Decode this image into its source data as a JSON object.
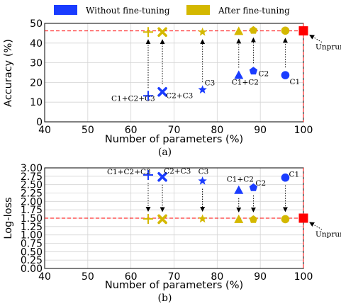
{
  "legend": [
    {
      "label": "Without fine-tuning",
      "color": "#1a3cff"
    },
    {
      "label": "After fine-tuning",
      "color": "#d4b800"
    }
  ],
  "chart_data": [
    {
      "type": "scatter",
      "caption": "(a)",
      "xlabel": "Number of parameters (%)",
      "ylabel": "Accuracy (%)",
      "xlim": [
        40,
        100
      ],
      "ylim": [
        0,
        50
      ],
      "xticks": [
        "40",
        "50",
        "60",
        "70",
        "80",
        "90",
        "100"
      ],
      "yticks": [
        "0",
        "10",
        "20",
        "30",
        "40",
        "50"
      ],
      "grid": true,
      "reference": {
        "x": 100,
        "y": 46.2,
        "label": "Unpruned",
        "color": "#ff0000"
      },
      "series": [
        {
          "name": "Without fine-tuning",
          "color": "#1a3cff",
          "points": [
            {
              "label": "C1+C2+C3",
              "x": 64,
              "y": 13.2,
              "marker": "plus"
            },
            {
              "label": "C2+C3",
              "x": 67.3,
              "y": 15.2,
              "marker": "x"
            },
            {
              "label": "C3",
              "x": 76.6,
              "y": 16.3,
              "marker": "star"
            },
            {
              "label": "C1+C2",
              "x": 85,
              "y": 23.6,
              "marker": "triangle"
            },
            {
              "label": "C2",
              "x": 88.4,
              "y": 25.8,
              "marker": "pentagon"
            },
            {
              "label": "C1",
              "x": 95.8,
              "y": 23.7,
              "marker": "circle"
            }
          ]
        },
        {
          "name": "After fine-tuning",
          "color": "#d4b800",
          "points": [
            {
              "x": 64,
              "y": 45.6,
              "marker": "plus"
            },
            {
              "x": 67.3,
              "y": 45.6,
              "marker": "x"
            },
            {
              "x": 76.6,
              "y": 45.6,
              "marker": "star"
            },
            {
              "x": 85,
              "y": 45.9,
              "marker": "triangle"
            },
            {
              "x": 88.4,
              "y": 46.5,
              "marker": "pentagon"
            },
            {
              "x": 95.8,
              "y": 46.3,
              "marker": "circle"
            }
          ]
        }
      ]
    },
    {
      "type": "scatter",
      "caption": "(b)",
      "xlabel": "Number of parameters (%)",
      "ylabel": "Log-loss",
      "xlim": [
        40,
        100
      ],
      "ylim": [
        0,
        3
      ],
      "xticks": [
        "40",
        "50",
        "60",
        "70",
        "80",
        "90",
        "100"
      ],
      "yticks": [
        "0.00",
        "0.25",
        "0.50",
        "0.75",
        "1.00",
        "1.25",
        "1.50",
        "1.75",
        "2.00",
        "2.25",
        "2.50",
        "2.75",
        "3.00"
      ],
      "grid": true,
      "reference": {
        "x": 100,
        "y": 1.5,
        "label": "Unpruned",
        "color": "#ff0000"
      },
      "series": [
        {
          "name": "Without fine-tuning",
          "color": "#1a3cff",
          "points": [
            {
              "label": "C1+C2+C3",
              "x": 64,
              "y": 2.79,
              "marker": "plus"
            },
            {
              "label": "C2+C3",
              "x": 67.3,
              "y": 2.73,
              "marker": "x"
            },
            {
              "label": "C3",
              "x": 76.6,
              "y": 2.61,
              "marker": "star"
            },
            {
              "label": "C1+C2",
              "x": 85,
              "y": 2.33,
              "marker": "triangle"
            },
            {
              "label": "C2",
              "x": 88.4,
              "y": 2.41,
              "marker": "pentagon"
            },
            {
              "label": "C1",
              "x": 95.8,
              "y": 2.71,
              "marker": "circle"
            }
          ]
        },
        {
          "name": "After fine-tuning",
          "color": "#d4b800",
          "points": [
            {
              "x": 64,
              "y": 1.48,
              "marker": "plus"
            },
            {
              "x": 67.3,
              "y": 1.47,
              "marker": "x"
            },
            {
              "x": 76.6,
              "y": 1.48,
              "marker": "star"
            },
            {
              "x": 85,
              "y": 1.46,
              "marker": "triangle"
            },
            {
              "x": 88.4,
              "y": 1.46,
              "marker": "pentagon"
            },
            {
              "x": 95.8,
              "y": 1.47,
              "marker": "circle"
            }
          ]
        }
      ]
    }
  ]
}
